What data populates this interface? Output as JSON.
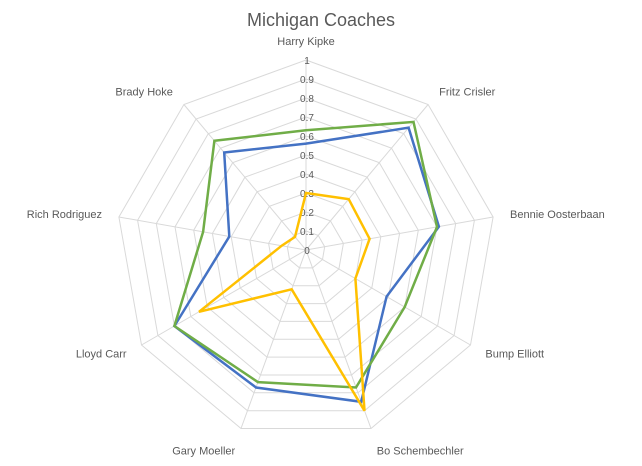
{
  "chart_data": {
    "type": "radar",
    "title": "Michigan Coaches",
    "categories": [
      "Harry Kipke",
      "Fritz Crisler",
      "Bennie Oosterbaan",
      "Bump Elliott",
      "Bo Schembechler",
      "Gary Moeller",
      "Lloyd Carr",
      "Rich Rodriguez",
      "Brady Hoke"
    ],
    "tick_labels": [
      "0",
      "0.1",
      "0.2",
      "0.3",
      "0.4",
      "0.5",
      "0.6",
      "0.7",
      "0.8",
      "0.9",
      "1"
    ],
    "rlim": [
      0,
      1
    ],
    "grid": true,
    "legend": "none",
    "series": [
      {
        "color": "#4472C4",
        "values": [
          0.56,
          0.84,
          0.71,
          0.49,
          0.85,
          0.77,
          0.8,
          0.41,
          0.67
        ]
      },
      {
        "color": "#70AD47",
        "values": [
          0.63,
          0.88,
          0.7,
          0.6,
          0.77,
          0.74,
          0.8,
          0.55,
          0.75
        ]
      },
      {
        "color": "#FFC000",
        "values": [
          0.3,
          0.35,
          0.34,
          0.3,
          0.9,
          0.22,
          0.65,
          0.13,
          0.09
        ]
      }
    ]
  }
}
